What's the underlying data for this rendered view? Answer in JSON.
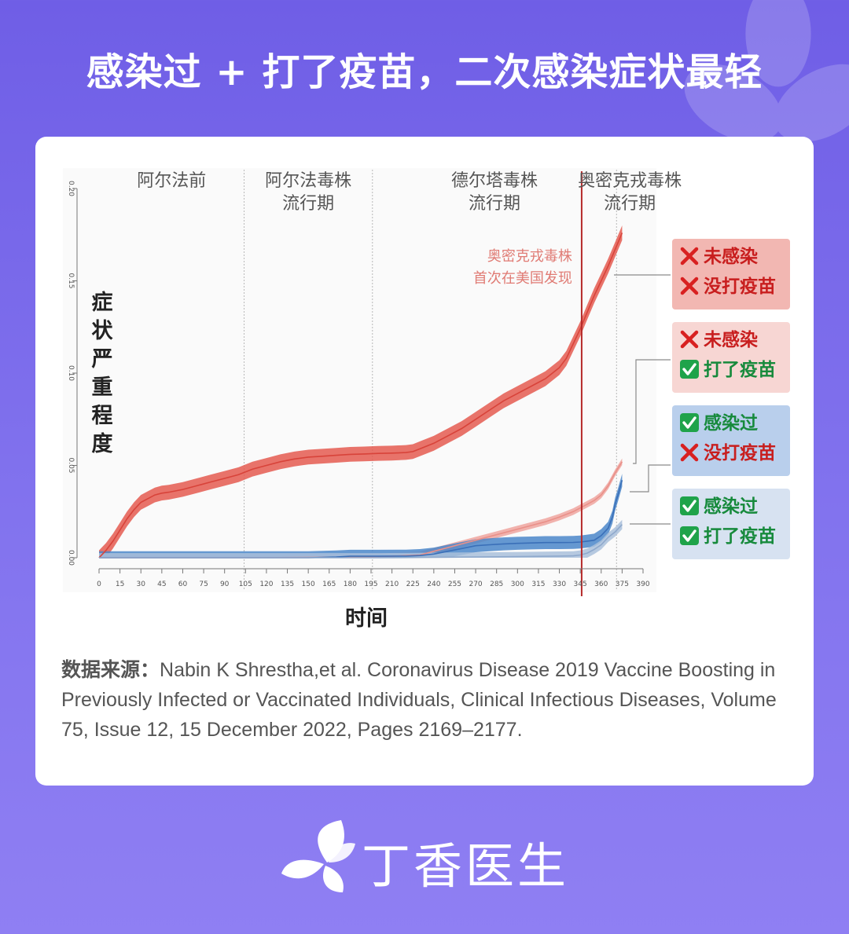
{
  "headline": "感染过 + 打了疫苗，二次感染症状最轻",
  "brand": {
    "name": "丁香医生",
    "purple": "#7565ea"
  },
  "chart_data": {
    "type": "line",
    "xlabel": "时间",
    "ylabel": "症状严重程度",
    "xlim": [
      0,
      390
    ],
    "ylim": [
      0,
      0.2
    ],
    "x_ticks": [
      0,
      15,
      30,
      45,
      60,
      75,
      90,
      105,
      120,
      135,
      150,
      165,
      180,
      195,
      210,
      225,
      240,
      255,
      270,
      285,
      300,
      315,
      330,
      345,
      360,
      375,
      390
    ],
    "y_ticks": [
      {
        "value": 0.0,
        "label": "0.00"
      },
      {
        "value": 0.05,
        "label": "0.05"
      },
      {
        "value": 0.1,
        "label": "0.10"
      },
      {
        "value": 0.15,
        "label": "0.15"
      },
      {
        "value": 0.2,
        "label": "0.20"
      }
    ],
    "periods": [
      {
        "x_start": 0,
        "x_end": 104,
        "line1": "阿尔法前",
        "line2": ""
      },
      {
        "x_start": 104,
        "x_end": 196,
        "line1": "阿尔法毒株",
        "line2": "流行期"
      },
      {
        "x_start": 196,
        "x_end": 371,
        "line1": "德尔塔毒株",
        "line2": "流行期"
      },
      {
        "x_start": 371,
        "x_end": 390,
        "line1": "奥密克戎毒株",
        "line2": "流行期"
      }
    ],
    "period_dividers": [
      104,
      196,
      371
    ],
    "omicron_marker": {
      "x": 346,
      "line1": "奥密克戎毒株",
      "line2": "首次在美国发现",
      "color": "#b52a2a"
    },
    "series": [
      {
        "key": "none",
        "color": "#d8433a",
        "band_color": "#e45b50",
        "band": 0.004,
        "legend": {
          "line1": "未感染",
          "line1_mark": "cross",
          "line2": "没打疫苗",
          "line2_mark": "cross",
          "bg": "#f2b7b2"
        },
        "x": [
          0,
          5,
          10,
          15,
          20,
          25,
          30,
          35,
          40,
          45,
          50,
          60,
          70,
          80,
          90,
          100,
          110,
          120,
          130,
          140,
          150,
          160,
          170,
          180,
          190,
          200,
          210,
          220,
          225,
          230,
          240,
          250,
          260,
          270,
          280,
          290,
          300,
          310,
          320,
          330,
          335,
          340,
          345,
          350,
          355,
          360,
          365,
          370,
          375
        ],
        "y": [
          0,
          0.004,
          0.009,
          0.015,
          0.021,
          0.026,
          0.03,
          0.032,
          0.034,
          0.035,
          0.0355,
          0.037,
          0.039,
          0.041,
          0.043,
          0.045,
          0.048,
          0.05,
          0.052,
          0.0535,
          0.0545,
          0.055,
          0.0555,
          0.056,
          0.0562,
          0.0565,
          0.0567,
          0.057,
          0.0575,
          0.059,
          0.062,
          0.066,
          0.07,
          0.075,
          0.08,
          0.085,
          0.089,
          0.093,
          0.097,
          0.103,
          0.108,
          0.116,
          0.124,
          0.133,
          0.142,
          0.15,
          0.158,
          0.167,
          0.176
        ]
      },
      {
        "key": "vaccinated",
        "color": "#e99089",
        "band_color": "#efa59f",
        "band": 0.0018,
        "legend": {
          "line1": "未感染",
          "line1_mark": "cross",
          "line2": "打了疫苗",
          "line2_mark": "check",
          "bg": "#f7d6d3"
        },
        "x": [
          0,
          100,
          180,
          210,
          230,
          240,
          250,
          260,
          270,
          280,
          290,
          300,
          310,
          320,
          330,
          340,
          345,
          350,
          355,
          360,
          365,
          370,
          375
        ],
        "y": [
          0,
          0,
          0.0003,
          0.0008,
          0.0015,
          0.0035,
          0.0055,
          0.0075,
          0.0095,
          0.0115,
          0.0135,
          0.0155,
          0.0175,
          0.0195,
          0.022,
          0.025,
          0.027,
          0.029,
          0.031,
          0.034,
          0.039,
          0.046,
          0.052
        ]
      },
      {
        "key": "infected",
        "color": "#3a6fb8",
        "band_color": "#4a86c9",
        "band": 0.0035,
        "legend": {
          "line1": "感染过",
          "line1_mark": "check",
          "line2": "没打疫苗",
          "line2_mark": "cross",
          "bg": "#b9cfec"
        },
        "x": [
          0,
          150,
          160,
          170,
          180,
          200,
          220,
          230,
          240,
          250,
          260,
          270,
          280,
          290,
          300,
          310,
          320,
          330,
          340,
          345,
          350,
          355,
          360,
          365,
          368,
          370,
          372,
          375
        ],
        "y": [
          0,
          0,
          0.0002,
          0.0004,
          0.0008,
          0.0008,
          0.0009,
          0.0012,
          0.002,
          0.0035,
          0.005,
          0.0065,
          0.007,
          0.0075,
          0.0078,
          0.008,
          0.0082,
          0.0082,
          0.0083,
          0.0085,
          0.009,
          0.0095,
          0.012,
          0.016,
          0.022,
          0.029,
          0.034,
          0.042
        ]
      },
      {
        "key": "both",
        "color": "#8fa9cc",
        "band_color": "#a9bfda",
        "band": 0.0025,
        "legend": {
          "line1": "感染过",
          "line1_mark": "check",
          "line2": "打了疫苗",
          "line2_mark": "check",
          "bg": "#d7e2f1"
        },
        "x": [
          0,
          200,
          250,
          300,
          330,
          340,
          345,
          350,
          355,
          360,
          365,
          370,
          375
        ],
        "y": [
          0,
          0,
          0.0003,
          0.0006,
          0.0009,
          0.001,
          0.0015,
          0.0025,
          0.0045,
          0.007,
          0.011,
          0.014,
          0.018
        ]
      }
    ]
  },
  "source": {
    "label": "数据来源：",
    "text": "Nabin K Shrestha,et al. Coronavirus Disease 2019 Vaccine Boosting in Previously Infected or Vaccinated Individuals, Clinical Infectious Diseases, Volume 75, Issue 12, 15 December 2022, Pages 2169–2177."
  }
}
